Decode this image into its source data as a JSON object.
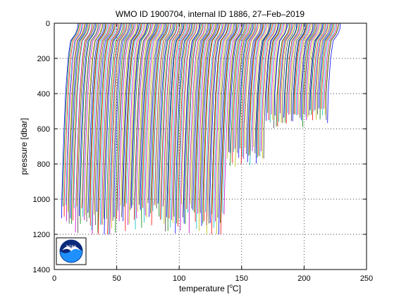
{
  "chart_data": {
    "type": "line",
    "title": "WMO ID 1900704, internal ID 1886, 27–Feb–2019",
    "xlabel_prefix": "temperature [",
    "xlabel_sup": "o",
    "xlabel_suffix": "C]",
    "ylabel": "pressure [dbar]",
    "xlim": [
      0,
      250
    ],
    "ylim": [
      0,
      1400
    ],
    "y_reversed": true,
    "grid": true,
    "grid_style": "dotted",
    "xticks": [
      0,
      50,
      100,
      150,
      200,
      250
    ],
    "yticks": [
      0,
      200,
      400,
      600,
      800,
      1000,
      1200,
      1400
    ],
    "profile_count": 220,
    "x_offset_step": 1,
    "series_colors": [
      "#0000ff",
      "#008000",
      "#ff0000",
      "#00bfbf",
      "#bf00bf",
      "#bfbf00",
      "#3f3f3f"
    ],
    "groups": [
      {
        "start_x": 5,
        "end_x": 23,
        "max_pressure": 1200
      },
      {
        "start_x": 24,
        "end_x": 50,
        "max_pressure": 1250
      },
      {
        "start_x": 51,
        "end_x": 85,
        "max_pressure": 1200
      },
      {
        "start_x": 86,
        "end_x": 115,
        "max_pressure": 1200
      },
      {
        "start_x": 116,
        "end_x": 135,
        "max_pressure": 1250
      },
      {
        "start_x": 136,
        "end_x": 165,
        "max_pressure": 820
      },
      {
        "start_x": 166,
        "end_x": 195,
        "max_pressure": 600
      },
      {
        "start_x": 196,
        "end_x": 215,
        "max_pressure": 570
      }
    ],
    "typical_profile": {
      "pressure": [
        0,
        30,
        60,
        100,
        200,
        400,
        600,
        800,
        1000,
        1200
      ],
      "temperature_offset": [
        14,
        13.5,
        12,
        8,
        6,
        4,
        2.8,
        1.8,
        1.0,
        0.3
      ]
    }
  },
  "logo": {
    "name": "NOAA",
    "text": "NOAA"
  }
}
